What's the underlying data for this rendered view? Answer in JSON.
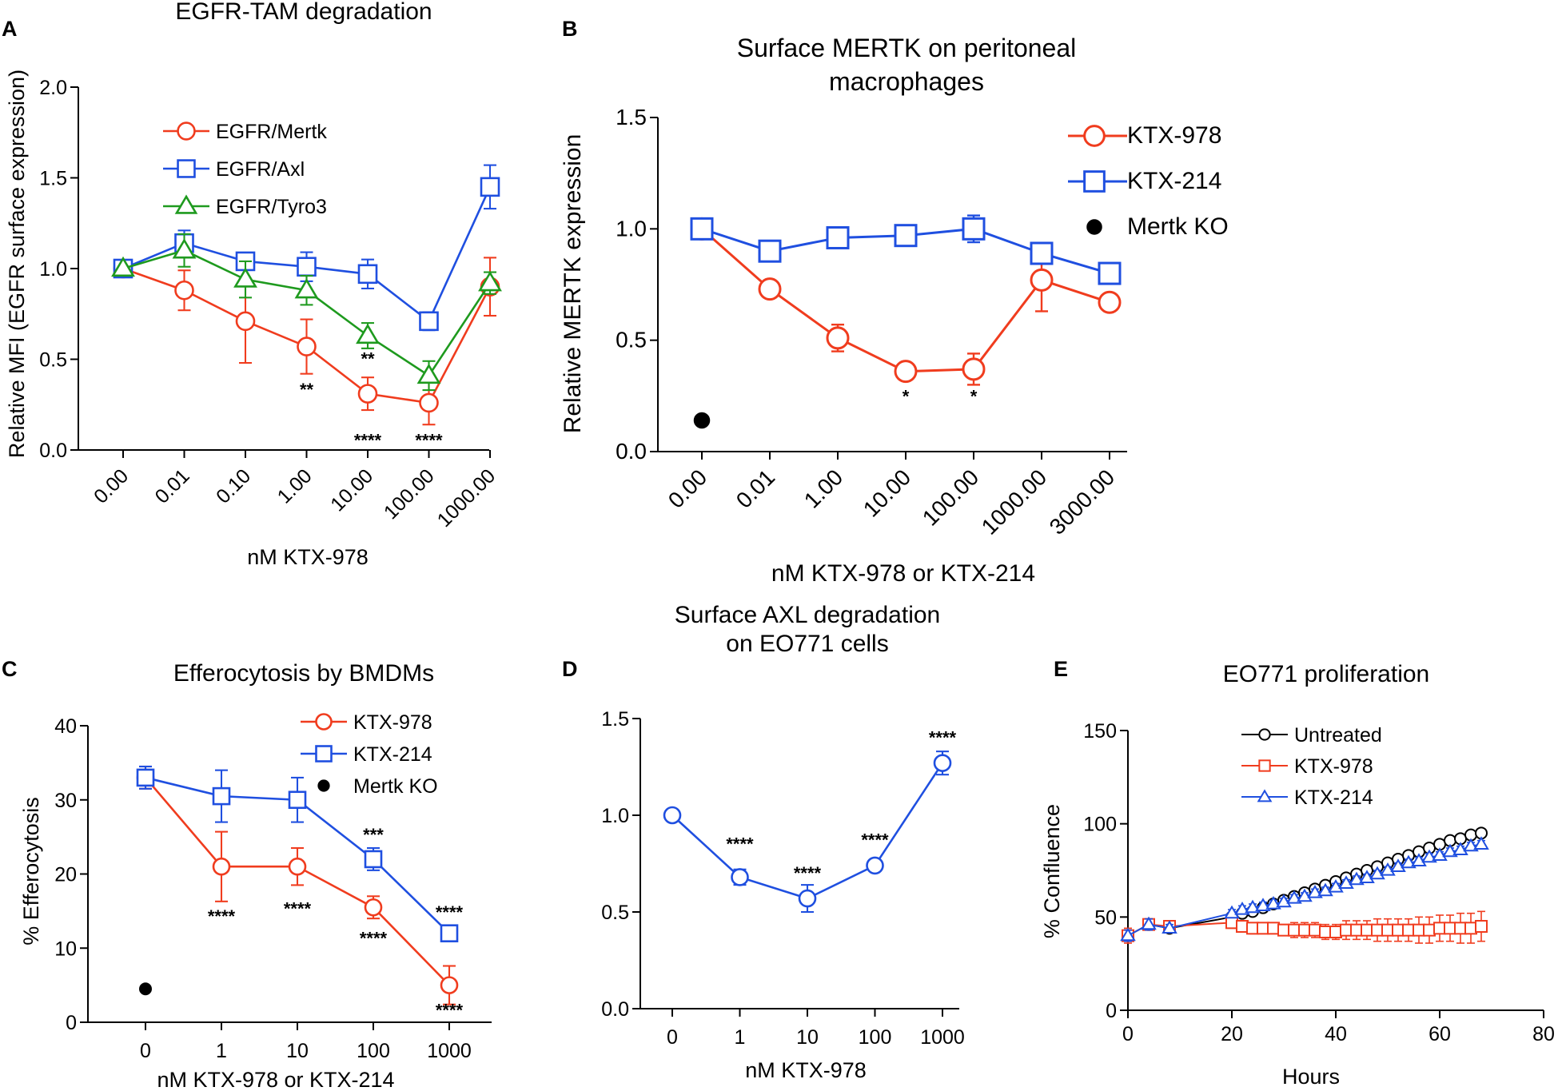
{
  "colors": {
    "red": "#f03c1e",
    "blue": "#1f4fe0",
    "green": "#1e9a1e",
    "black": "#000000"
  },
  "chart_data": [
    {
      "panel": "A",
      "type": "line",
      "title": "EGFR-TAM degradation",
      "xlabel": "nM KTX-978",
      "ylabel": "Relative MFI (EGFR surface expression)",
      "categories": [
        "0.00",
        "0.01",
        "0.10",
        "1.00",
        "10.00",
        "100.00",
        "1000.00"
      ],
      "ylim": [
        0,
        2.0
      ],
      "yticks": [
        "0.0",
        "0.5",
        "1.0",
        "1.5",
        "2.0"
      ],
      "legend_position": "top-left",
      "series": [
        {
          "name": "EGFR/Mertk",
          "color": "red",
          "marker": "circle",
          "values": [
            1.0,
            0.88,
            0.71,
            0.57,
            0.31,
            0.26,
            0.9
          ],
          "errors": [
            0.0,
            0.11,
            0.23,
            0.15,
            0.09,
            0.12,
            0.16
          ]
        },
        {
          "name": "EGFR/Axl",
          "color": "blue",
          "marker": "square",
          "values": [
            1.0,
            1.14,
            1.04,
            1.01,
            0.97,
            0.71,
            1.45
          ],
          "errors": [
            0.0,
            0.07,
            0.03,
            0.08,
            0.08,
            0.05,
            0.12
          ]
        },
        {
          "name": "EGFR/Tyro3",
          "color": "green",
          "marker": "triangle",
          "values": [
            1.0,
            1.1,
            0.94,
            0.88,
            0.63,
            0.41,
            0.92
          ],
          "errors": [
            0.0,
            0.09,
            0.1,
            0.08,
            0.07,
            0.08,
            0.06
          ]
        }
      ],
      "annotations": [
        {
          "category": "1.00",
          "y": 0.3,
          "text": "**"
        },
        {
          "category": "10.00",
          "y": 0.47,
          "text": "**"
        },
        {
          "category": "10.00",
          "y": 0.02,
          "text": "****"
        },
        {
          "category": "100.00",
          "y": 0.02,
          "text": "****"
        }
      ]
    },
    {
      "panel": "B",
      "type": "line",
      "title": [
        "Surface MERTK on peritoneal",
        "macrophages"
      ],
      "xlabel": "nM KTX-978 or KTX-214",
      "ylabel": "Relative MERTK expression",
      "categories": [
        "0.00",
        "0.01",
        "1.00",
        "10.00",
        "100.00",
        "1000.00",
        "3000.00"
      ],
      "ylim": [
        0,
        1.5
      ],
      "yticks": [
        "0.0",
        "0.5",
        "1.0",
        "1.5"
      ],
      "legend_position": "top-right",
      "series": [
        {
          "name": "KTX-978",
          "color": "red",
          "marker": "circle",
          "values": [
            1.0,
            0.73,
            0.51,
            0.36,
            0.37,
            0.77,
            0.67
          ],
          "errors": [
            0.0,
            0.02,
            0.06,
            0.03,
            0.07,
            0.14,
            0.02
          ]
        },
        {
          "name": "KTX-214",
          "color": "blue",
          "marker": "square",
          "values": [
            1.0,
            0.9,
            0.96,
            0.97,
            1.0,
            0.89,
            0.8
          ],
          "errors": [
            0.0,
            0.03,
            0.02,
            0.04,
            0.06,
            0.04,
            0.02
          ]
        },
        {
          "name": "Mertk KO",
          "color": "black",
          "marker": "dot",
          "points": [
            {
              "category": "0.00",
              "value": 0.14
            }
          ]
        }
      ],
      "annotations": [
        {
          "category": "10.00",
          "y": 0.22,
          "text": "*"
        },
        {
          "category": "100.00",
          "y": 0.22,
          "text": "*"
        }
      ]
    },
    {
      "panel": "C",
      "type": "line",
      "title": "Efferocytosis by BMDMs",
      "xlabel": "nM KTX-978 or KTX-214",
      "ylabel": "% Efferocytosis",
      "categories": [
        "0",
        "1",
        "10",
        "100",
        "1000"
      ],
      "ylim": [
        0,
        40
      ],
      "yticks": [
        "0",
        "10",
        "20",
        "30",
        "40"
      ],
      "legend_position": "top-right",
      "series": [
        {
          "name": "KTX-978",
          "color": "red",
          "marker": "circle",
          "values": [
            33.0,
            21.0,
            21.0,
            15.5,
            5.0
          ],
          "errors": [
            1.5,
            4.7,
            2.5,
            1.5,
            2.6
          ]
        },
        {
          "name": "KTX-214",
          "color": "blue",
          "marker": "square",
          "values": [
            33.0,
            30.5,
            30.0,
            22.0,
            12.0
          ],
          "errors": [
            1.5,
            3.5,
            3.0,
            1.5,
            1.0
          ]
        },
        {
          "name": "Mertk KO",
          "color": "black",
          "marker": "dot",
          "points": [
            {
              "category": "0",
              "value": 4.5
            }
          ]
        }
      ],
      "annotations": [
        {
          "category": "1",
          "y": 13.5,
          "text": "****"
        },
        {
          "category": "10",
          "y": 14.5,
          "text": "****"
        },
        {
          "category": "100",
          "y": 10.5,
          "text": "****"
        },
        {
          "category": "100",
          "y": 24.5,
          "text": "***"
        },
        {
          "category": "1000",
          "y": 14.0,
          "text": "****"
        },
        {
          "category": "1000",
          "y": 0.8,
          "text": "****"
        }
      ]
    },
    {
      "panel": "D",
      "type": "line",
      "title": [
        "Surface AXL degradation",
        "on EO771 cells"
      ],
      "xlabel": "nM KTX-978",
      "ylabel": "",
      "categories": [
        "0",
        "1",
        "10",
        "100",
        "1000"
      ],
      "ylim": [
        0,
        1.5
      ],
      "yticks": [
        "0.0",
        "0.5",
        "1.0",
        "1.5"
      ],
      "series": [
        {
          "name": "KTX-978",
          "color": "blue",
          "marker": "circle",
          "values": [
            1.0,
            0.68,
            0.57,
            0.74,
            1.27
          ],
          "errors": [
            0.0,
            0.04,
            0.07,
            0.01,
            0.06
          ]
        }
      ],
      "annotations": [
        {
          "category": "1",
          "y": 0.82,
          "text": "****"
        },
        {
          "category": "10",
          "y": 0.67,
          "text": "****"
        },
        {
          "category": "100",
          "y": 0.84,
          "text": "****"
        },
        {
          "category": "1000",
          "y": 1.37,
          "text": "****"
        }
      ]
    },
    {
      "panel": "E",
      "type": "line",
      "title": "EO771 proliferation",
      "xlabel": "Hours",
      "ylabel": "% Confluence",
      "xlim": [
        0,
        80
      ],
      "xticks": [
        "0",
        "20",
        "40",
        "60",
        "80"
      ],
      "ylim": [
        0,
        150
      ],
      "yticks": [
        "0",
        "50",
        "100",
        "150"
      ],
      "legend_position": "top-left",
      "series": [
        {
          "name": "Untreated",
          "color": "black",
          "marker": "circle",
          "x": [
            0,
            4,
            8,
            20,
            22,
            24,
            26,
            28,
            30,
            32,
            34,
            36,
            38,
            40,
            42,
            44,
            46,
            48,
            50,
            52,
            54,
            56,
            58,
            60,
            62,
            64,
            66,
            68
          ],
          "values": [
            40,
            46,
            44,
            50,
            52,
            53,
            55,
            57,
            59,
            61,
            63,
            65,
            67,
            69,
            71,
            73,
            75,
            77,
            79,
            81,
            83,
            85,
            87,
            89,
            91,
            92,
            94,
            95
          ],
          "errors": [
            3,
            3,
            2,
            2,
            2,
            2,
            2,
            2,
            2,
            2,
            2,
            2,
            2,
            2,
            2,
            2,
            2,
            2,
            2,
            2,
            2,
            2,
            2,
            2,
            2,
            2,
            2,
            2
          ]
        },
        {
          "name": "KTX-978",
          "color": "red",
          "marker": "square",
          "x": [
            0,
            4,
            8,
            20,
            22,
            24,
            26,
            28,
            30,
            32,
            34,
            36,
            38,
            40,
            42,
            44,
            46,
            48,
            50,
            52,
            54,
            56,
            58,
            60,
            62,
            64,
            66,
            68
          ],
          "values": [
            40,
            46,
            45,
            47,
            45,
            44,
            44,
            44,
            43,
            43,
            43,
            43,
            42,
            42,
            43,
            43,
            43,
            43,
            43,
            43,
            43,
            43,
            43,
            44,
            44,
            44,
            44,
            45
          ],
          "errors": [
            4,
            3,
            3,
            3,
            3,
            3,
            3,
            3,
            3,
            4,
            4,
            4,
            4,
            4,
            5,
            5,
            5,
            6,
            6,
            6,
            6,
            7,
            7,
            7,
            7,
            8,
            8,
            8
          ]
        },
        {
          "name": "KTX-214",
          "color": "blue",
          "marker": "triangle",
          "x": [
            0,
            4,
            8,
            20,
            22,
            24,
            26,
            28,
            30,
            32,
            34,
            36,
            38,
            40,
            42,
            44,
            46,
            48,
            50,
            52,
            54,
            56,
            58,
            60,
            62,
            64,
            66,
            68
          ],
          "values": [
            40,
            46,
            44,
            52,
            54,
            55,
            56,
            57,
            58,
            60,
            61,
            63,
            64,
            66,
            68,
            70,
            71,
            73,
            75,
            77,
            79,
            80,
            82,
            83,
            85,
            86,
            88,
            89
          ],
          "errors": [
            3,
            3,
            2,
            2,
            2,
            2,
            2,
            2,
            2,
            2,
            2,
            2,
            2,
            2,
            2,
            2,
            2,
            2,
            2,
            2,
            2,
            2,
            2,
            2,
            2,
            2,
            2,
            2
          ]
        }
      ]
    }
  ]
}
